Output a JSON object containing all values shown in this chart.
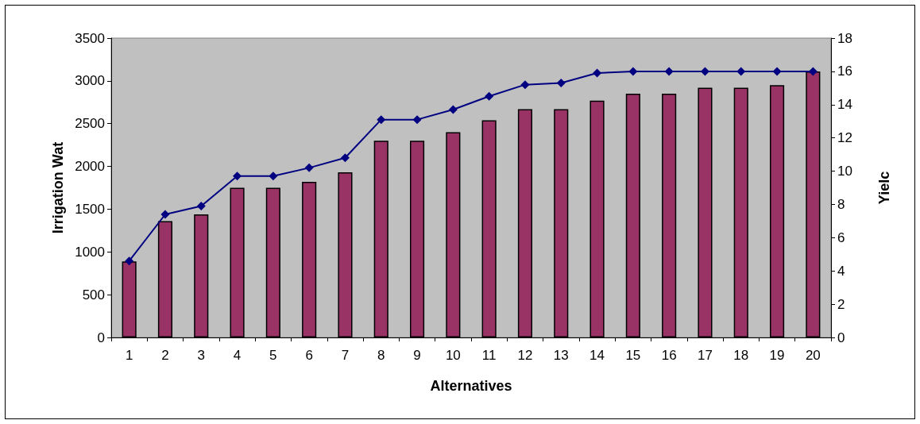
{
  "chart_data": {
    "type": "bar",
    "xlabel": "Alternatives",
    "ylabel": "Irrigation Wat",
    "y2label": "Yielc",
    "categories": [
      "1",
      "2",
      "3",
      "4",
      "5",
      "6",
      "7",
      "8",
      "9",
      "10",
      "11",
      "12",
      "13",
      "14",
      "15",
      "16",
      "17",
      "18",
      "19",
      "20"
    ],
    "series": [
      {
        "color": "#993366",
        "values": [
          890,
          1360,
          1440,
          1750,
          1750,
          1820,
          1930,
          2300,
          2300,
          2400,
          2540,
          2670,
          2670,
          2770,
          2850,
          2850,
          2920,
          2920,
          2950,
          3110
        ]
      },
      {
        "type": "line",
        "axis": "y2",
        "color": "#000080",
        "marker": "diamond",
        "values": [
          4.6,
          7.4,
          7.9,
          9.7,
          9.7,
          10.2,
          10.8,
          13.1,
          13.1,
          13.7,
          14.5,
          15.2,
          15.3,
          15.9,
          16,
          16,
          16,
          16,
          16,
          16
        ]
      }
    ],
    "ylim": [
      0,
      3500
    ],
    "yticks": [
      0,
      500,
      1000,
      1500,
      2000,
      2500,
      3000,
      3500
    ],
    "y2lim": [
      0,
      18
    ],
    "y2ticks": [
      0,
      2,
      4,
      6,
      8,
      10,
      12,
      14,
      16,
      18
    ],
    "grid": false
  }
}
